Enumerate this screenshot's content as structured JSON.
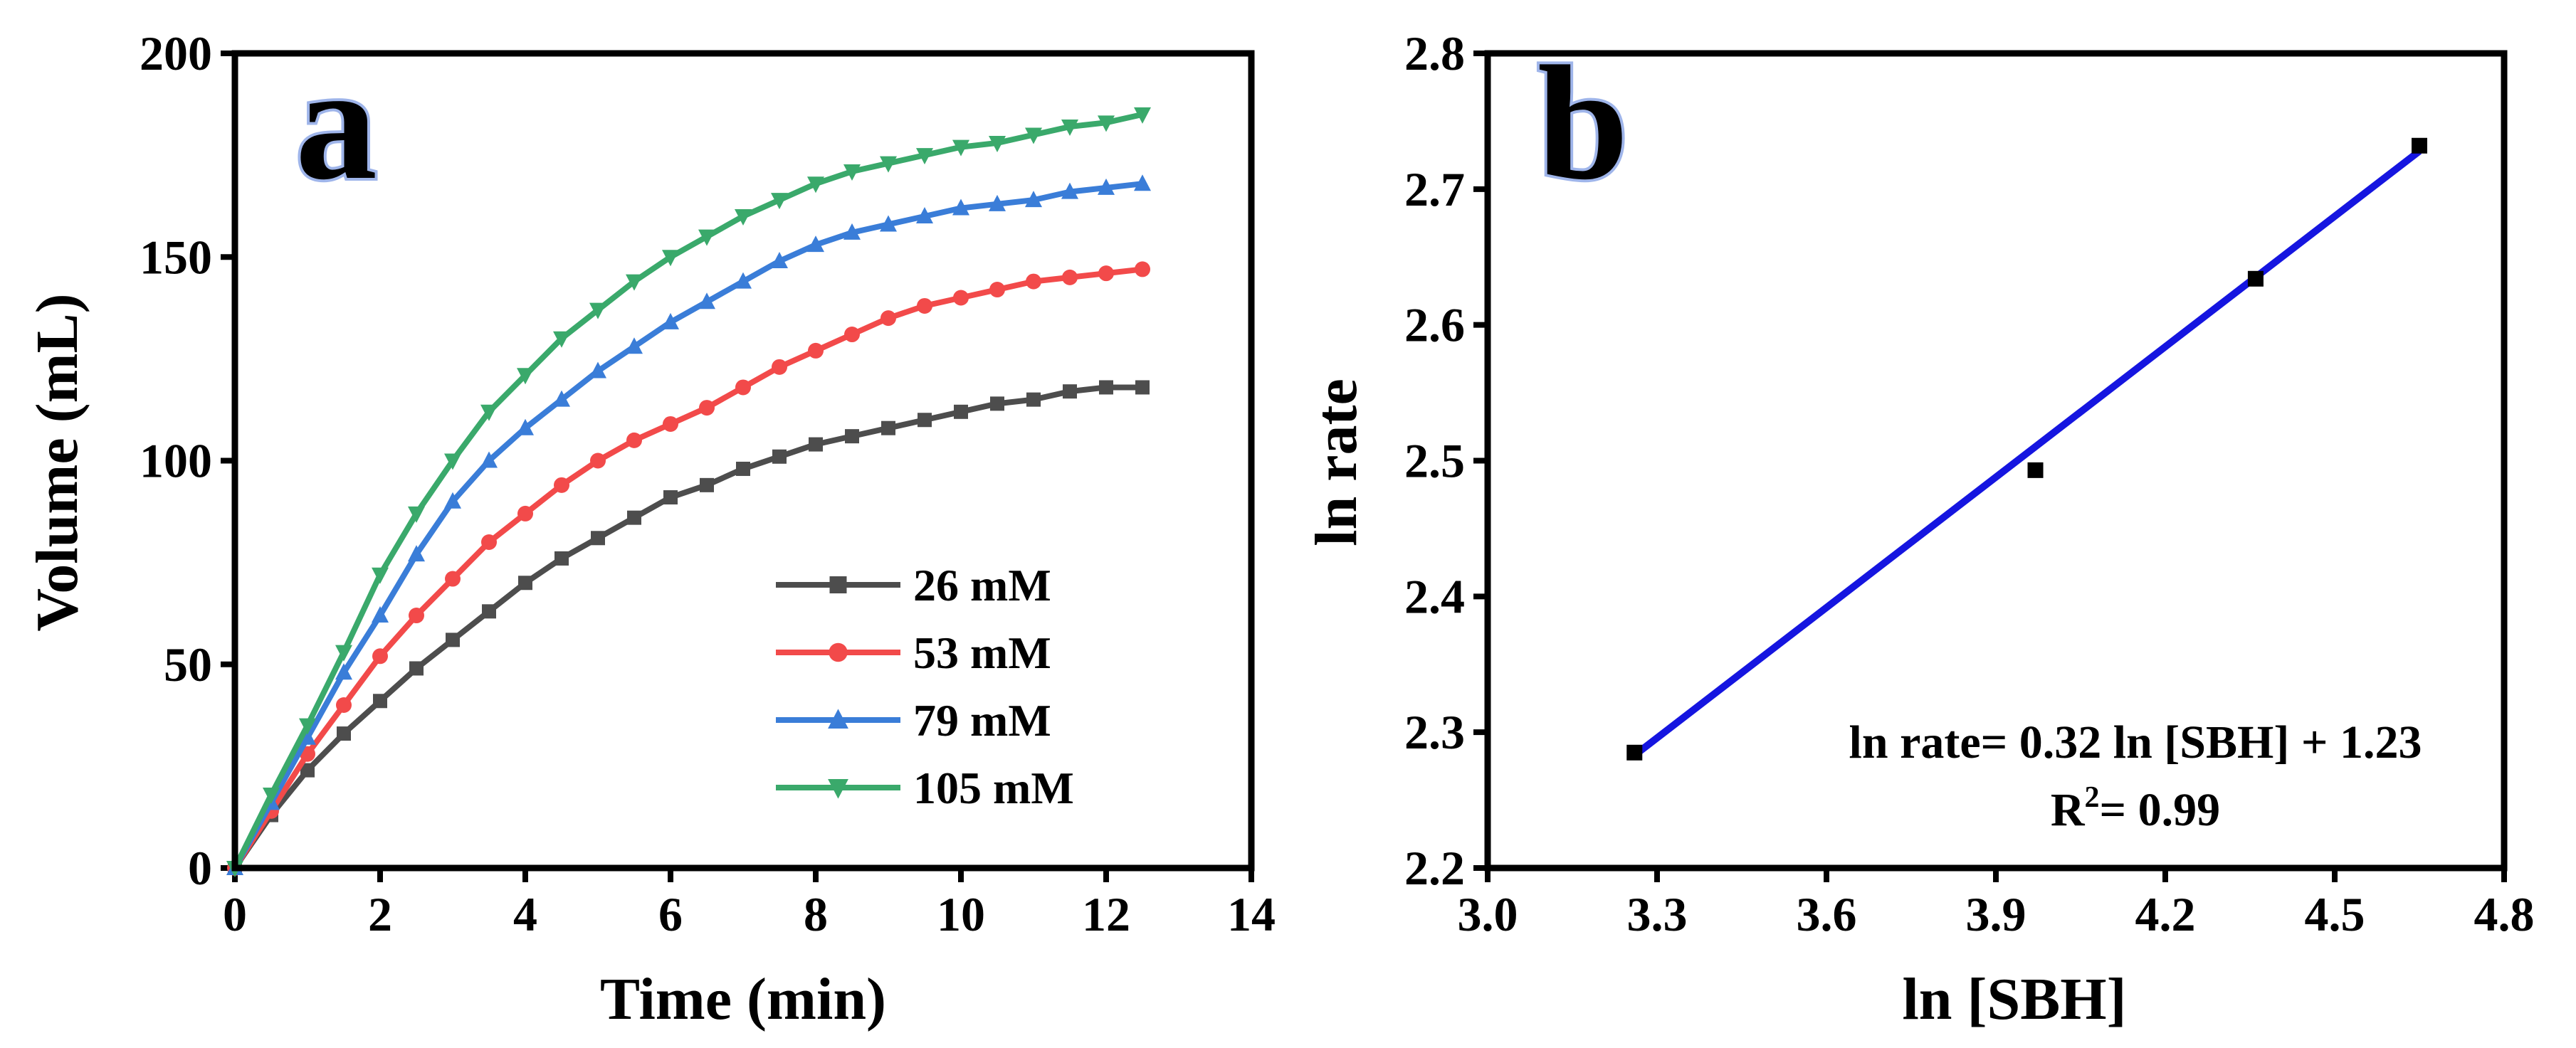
{
  "chart_data": [
    {
      "type": "line",
      "panel_label": "a",
      "xlabel": "Time (min)",
      "ylabel": "Volume (mL)",
      "xlim": [
        0,
        14
      ],
      "ylim": [
        0,
        200
      ],
      "xticks": [
        "0",
        "2",
        "4",
        "6",
        "8",
        "10",
        "12",
        "14"
      ],
      "yticks": [
        "0",
        "50",
        "100",
        "150",
        "200"
      ],
      "legend_position": "bottom-right",
      "series": [
        {
          "name": "26 mM",
          "color": "#4d4d4d",
          "marker": "square",
          "x": [
            0,
            0.5,
            1,
            1.5,
            2,
            2.5,
            3,
            3.5,
            4,
            4.5,
            5,
            5.5,
            6,
            6.5,
            7,
            7.5,
            8,
            8.5,
            9,
            9.5,
            10,
            10.5,
            11,
            11.5,
            12,
            12.5
          ],
          "values": [
            0,
            13,
            24,
            33,
            41,
            49,
            56,
            63,
            70,
            76,
            81,
            86,
            91,
            94,
            98,
            101,
            104,
            106,
            108,
            110,
            112,
            114,
            115,
            117,
            118,
            118
          ]
        },
        {
          "name": "53 mM",
          "color": "#f24a4a",
          "marker": "circle",
          "x": [
            0,
            0.5,
            1,
            1.5,
            2,
            2.5,
            3,
            3.5,
            4,
            4.5,
            5,
            5.5,
            6,
            6.5,
            7,
            7.5,
            8,
            8.5,
            9,
            9.5,
            10,
            10.5,
            11,
            11.5,
            12,
            12.5
          ],
          "values": [
            0,
            14,
            28,
            40,
            52,
            62,
            71,
            80,
            87,
            94,
            100,
            105,
            109,
            113,
            118,
            123,
            127,
            131,
            135,
            138,
            140,
            142,
            144,
            145,
            146,
            147
          ]
        },
        {
          "name": "79 mM",
          "color": "#3a7dd8",
          "marker": "triangle-up",
          "x": [
            0,
            0.5,
            1,
            1.5,
            2,
            2.5,
            3,
            3.5,
            4,
            4.5,
            5,
            5.5,
            6,
            6.5,
            7,
            7.5,
            8,
            8.5,
            9,
            9.5,
            10,
            10.5,
            11,
            11.5,
            12,
            12.5
          ],
          "values": [
            0,
            16,
            32,
            48,
            62,
            77,
            90,
            100,
            108,
            115,
            122,
            128,
            134,
            139,
            144,
            149,
            153,
            156,
            158,
            160,
            162,
            163,
            164,
            166,
            167,
            168
          ]
        },
        {
          "name": "105 mM",
          "color": "#3aa96b",
          "marker": "triangle-down",
          "x": [
            0,
            0.5,
            1,
            1.5,
            2,
            2.5,
            3,
            3.5,
            4,
            4.5,
            5,
            5.5,
            6,
            6.5,
            7,
            7.5,
            8,
            8.5,
            9,
            9.5,
            10,
            10.5,
            11,
            11.5,
            12,
            12.5
          ],
          "values": [
            0,
            18,
            35,
            53,
            72,
            87,
            100,
            112,
            121,
            130,
            137,
            144,
            150,
            155,
            160,
            164,
            168,
            171,
            173,
            175,
            177,
            178,
            180,
            182,
            183,
            185
          ]
        }
      ]
    },
    {
      "type": "scatter",
      "panel_label": "b",
      "xlabel": "ln [SBH]",
      "ylabel": "ln rate",
      "xlim": [
        3.0,
        4.8
      ],
      "ylim": [
        2.2,
        2.8
      ],
      "xticks": [
        "3.0",
        "3.3",
        "3.6",
        "3.9",
        "4.2",
        "4.5",
        "4.8"
      ],
      "yticks": [
        "2.2",
        "2.3",
        "2.4",
        "2.5",
        "2.6",
        "2.7",
        "2.8"
      ],
      "points": {
        "x": [
          3.26,
          3.97,
          4.36,
          4.65
        ],
        "y": [
          2.285,
          2.493,
          2.634,
          2.732
        ],
        "color": "#000000"
      },
      "fit_line": {
        "x": [
          3.26,
          4.65
        ],
        "y": [
          2.283,
          2.728
        ],
        "color": "#1515e0"
      },
      "equation": "ln rate= 0.32 ln [SBH] + 1.23",
      "r_squared_label": "R",
      "r_squared_sup": "2",
      "r_squared_value": "= 0.99"
    }
  ]
}
